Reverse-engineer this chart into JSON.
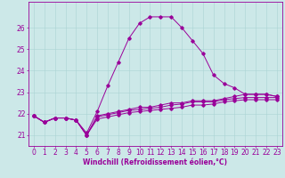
{
  "xlabel": "Windchill (Refroidissement éolien,°C)",
  "background_color": "#cce8e8",
  "line_color": "#990099",
  "xlim": [
    -0.5,
    23.5
  ],
  "ylim": [
    20.5,
    27.2
  ],
  "yticks": [
    21,
    22,
    23,
    24,
    25,
    26
  ],
  "xticks": [
    0,
    1,
    2,
    3,
    4,
    5,
    6,
    7,
    8,
    9,
    10,
    11,
    12,
    13,
    14,
    15,
    16,
    17,
    18,
    19,
    20,
    21,
    22,
    23
  ],
  "series1_x": [
    0,
    1,
    2,
    3,
    4,
    5,
    6,
    7,
    8,
    9,
    10,
    11,
    12,
    13,
    14,
    15,
    16,
    17,
    18,
    19,
    20,
    21,
    22,
    23
  ],
  "series1_y": [
    21.9,
    21.6,
    21.8,
    21.8,
    21.7,
    21.1,
    22.1,
    23.3,
    24.4,
    25.5,
    26.2,
    26.5,
    26.5,
    26.5,
    26.0,
    25.4,
    24.8,
    23.8,
    23.4,
    23.2,
    22.9,
    22.9,
    22.9,
    22.8
  ],
  "series2_x": [
    0,
    1,
    2,
    3,
    4,
    5,
    6,
    7,
    8,
    9,
    10,
    11,
    12,
    13,
    14,
    15,
    16,
    17,
    18,
    19,
    20,
    21,
    22,
    23
  ],
  "series2_y": [
    21.9,
    21.6,
    21.8,
    21.8,
    21.7,
    21.0,
    21.9,
    22.0,
    22.1,
    22.2,
    22.3,
    22.3,
    22.4,
    22.5,
    22.5,
    22.6,
    22.6,
    22.6,
    22.7,
    22.8,
    22.9,
    22.9,
    22.9,
    22.8
  ],
  "series3_x": [
    0,
    1,
    2,
    3,
    4,
    5,
    6,
    7,
    8,
    9,
    10,
    11,
    12,
    13,
    14,
    15,
    16,
    17,
    18,
    19,
    20,
    21,
    22,
    23
  ],
  "series3_y": [
    21.9,
    21.6,
    21.8,
    21.8,
    21.7,
    21.0,
    21.85,
    21.95,
    22.05,
    22.15,
    22.2,
    22.25,
    22.3,
    22.4,
    22.45,
    22.55,
    22.55,
    22.55,
    22.65,
    22.7,
    22.75,
    22.75,
    22.75,
    22.75
  ],
  "series4_x": [
    0,
    1,
    2,
    3,
    4,
    5,
    6,
    7,
    8,
    9,
    10,
    11,
    12,
    13,
    14,
    15,
    16,
    17,
    18,
    19,
    20,
    21,
    22,
    23
  ],
  "series4_y": [
    21.9,
    21.6,
    21.8,
    21.8,
    21.7,
    21.0,
    21.75,
    21.85,
    21.95,
    22.05,
    22.1,
    22.15,
    22.2,
    22.25,
    22.3,
    22.4,
    22.4,
    22.45,
    22.55,
    22.6,
    22.65,
    22.65,
    22.65,
    22.65
  ],
  "grid_color": "#aad4d4",
  "xlabel_fontsize": 5.5,
  "tick_fontsize": 5.5,
  "marker": "D",
  "markersize": 1.8,
  "linewidth": 0.7
}
